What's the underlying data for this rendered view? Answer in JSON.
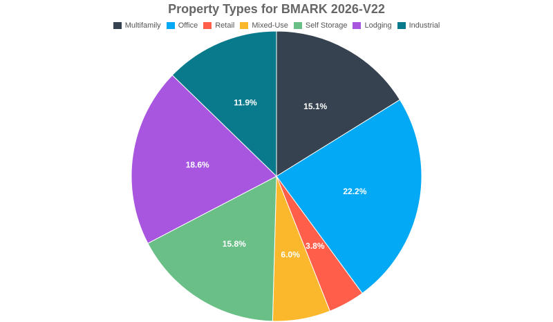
{
  "chart_data": {
    "type": "pie",
    "title": "Property Types for BMARK 2026-V22",
    "legend_position": "top",
    "categories": [
      "Multifamily",
      "Office",
      "Retail",
      "Mixed-Use",
      "Self Storage",
      "Lodging",
      "Industrial"
    ],
    "values": [
      15.1,
      22.2,
      3.8,
      6.0,
      15.8,
      18.6,
      11.9
    ],
    "labels": [
      "15.1%",
      "22.2%",
      "3.8%",
      "6.0%",
      "15.8%",
      "18.6%",
      "11.9%"
    ],
    "colors": [
      "#36424f",
      "#03a9f4",
      "#ff5f4a",
      "#fbb82c",
      "#6abf87",
      "#a855e0",
      "#087a8c"
    ]
  }
}
